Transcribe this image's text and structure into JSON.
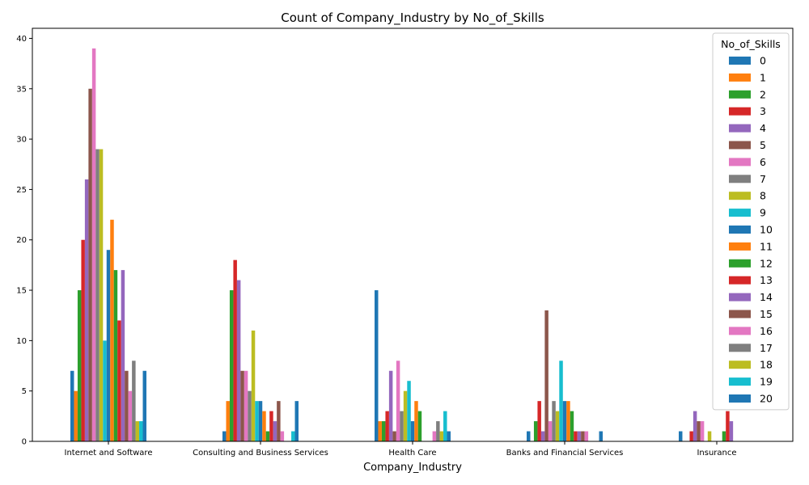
{
  "chart_data": {
    "type": "bar",
    "title": "Count of Company_Industry by No_of_Skills",
    "xlabel": "Company_Industry",
    "ylabel": "",
    "ylim": [
      0,
      41
    ],
    "yticks": [
      0,
      5,
      10,
      15,
      20,
      25,
      30,
      35,
      40
    ],
    "legend_title": "No_of_Skills",
    "legend_position": "top-right",
    "grid": false,
    "categories": [
      "Internet and Software",
      "Consulting and Business Services",
      "Health Care",
      "Banks and Financial Services",
      "Insurance"
    ],
    "series": [
      {
        "name": "0",
        "color": "#1f77b4",
        "values": [
          7,
          1,
          15,
          1,
          1
        ]
      },
      {
        "name": "1",
        "color": "#ff7f0e",
        "values": [
          5,
          4,
          2,
          0,
          0
        ]
      },
      {
        "name": "2",
        "color": "#2ca02c",
        "values": [
          15,
          15,
          2,
          2,
          0
        ]
      },
      {
        "name": "3",
        "color": "#d62728",
        "values": [
          20,
          18,
          3,
          4,
          1
        ]
      },
      {
        "name": "4",
        "color": "#9467bd",
        "values": [
          26,
          16,
          7,
          1,
          3
        ]
      },
      {
        "name": "5",
        "color": "#8c564b",
        "values": [
          35,
          7,
          1,
          13,
          2
        ]
      },
      {
        "name": "6",
        "color": "#e377c2",
        "values": [
          39,
          7,
          8,
          2,
          2
        ]
      },
      {
        "name": "7",
        "color": "#7f7f7f",
        "values": [
          29,
          5,
          3,
          4,
          0
        ]
      },
      {
        "name": "8",
        "color": "#bcbd22",
        "values": [
          29,
          11,
          5,
          3,
          1
        ]
      },
      {
        "name": "9",
        "color": "#17becf",
        "values": [
          10,
          4,
          6,
          8,
          0
        ]
      },
      {
        "name": "10",
        "color": "#1f77b4",
        "values": [
          19,
          4,
          2,
          4,
          0
        ]
      },
      {
        "name": "11",
        "color": "#ff7f0e",
        "values": [
          22,
          3,
          4,
          4,
          0
        ]
      },
      {
        "name": "12",
        "color": "#2ca02c",
        "values": [
          17,
          1,
          3,
          3,
          1
        ]
      },
      {
        "name": "13",
        "color": "#d62728",
        "values": [
          12,
          3,
          0,
          1,
          3
        ]
      },
      {
        "name": "14",
        "color": "#9467bd",
        "values": [
          17,
          2,
          0,
          1,
          2
        ]
      },
      {
        "name": "15",
        "color": "#8c564b",
        "values": [
          7,
          4,
          0,
          1,
          0
        ]
      },
      {
        "name": "16",
        "color": "#e377c2",
        "values": [
          5,
          1,
          1,
          1,
          0
        ]
      },
      {
        "name": "17",
        "color": "#7f7f7f",
        "values": [
          8,
          0,
          2,
          0,
          0
        ]
      },
      {
        "name": "18",
        "color": "#bcbd22",
        "values": [
          2,
          0,
          1,
          0,
          0
        ]
      },
      {
        "name": "19",
        "color": "#17becf",
        "values": [
          2,
          1,
          3,
          0,
          0
        ]
      },
      {
        "name": "20",
        "color": "#1f77b4",
        "values": [
          7,
          4,
          1,
          1,
          0
        ]
      }
    ]
  }
}
